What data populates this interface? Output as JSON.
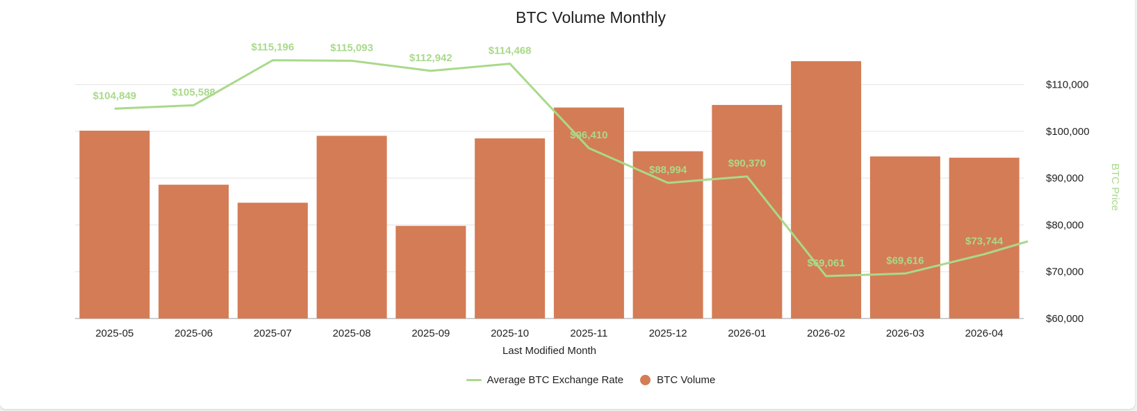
{
  "chart_data": {
    "type": "bar",
    "title": "BTC Volume Monthly",
    "xlabel": "Last Modified Month",
    "y2label": "BTC Price",
    "categories": [
      "2025-05",
      "2025-06",
      "2025-07",
      "2025-08",
      "2025-09",
      "2025-10",
      "2025-11",
      "2025-12",
      "2026-01",
      "2026-02",
      "2026-03",
      "2026-04"
    ],
    "series": [
      {
        "name": "BTC Volume",
        "type": "bar",
        "axis": "left",
        "color": "#d47c56",
        "values": [
          0.73,
          0.52,
          0.45,
          0.71,
          0.36,
          0.7,
          0.82,
          0.65,
          0.83,
          1.0,
          0.63,
          0.625
        ]
      },
      {
        "name": "Average BTC Exchange Rate",
        "type": "line",
        "axis": "right",
        "color": "#a9d98a",
        "values": [
          104849,
          105588,
          115196,
          115093,
          112942,
          114468,
          96410,
          88994,
          90370,
          69061,
          69616,
          73744
        ],
        "labels": [
          "$104,849",
          "$105,588",
          "$115,196",
          "$115,093",
          "$112,942",
          "$114,468",
          "$96,410",
          "$88,994",
          "$90,370",
          "$69,061",
          "$69,616",
          "$73,744"
        ],
        "end_value": 76500
      }
    ],
    "y2lim": [
      60000,
      115000
    ],
    "y2ticks": [
      60000,
      70000,
      80000,
      90000,
      100000,
      110000
    ],
    "y2tick_labels": [
      "$60,000",
      "$70,000",
      "$80,000",
      "$90,000",
      "$100,000",
      "$110,000"
    ],
    "grid": true,
    "legend_position": "bottom-center"
  }
}
